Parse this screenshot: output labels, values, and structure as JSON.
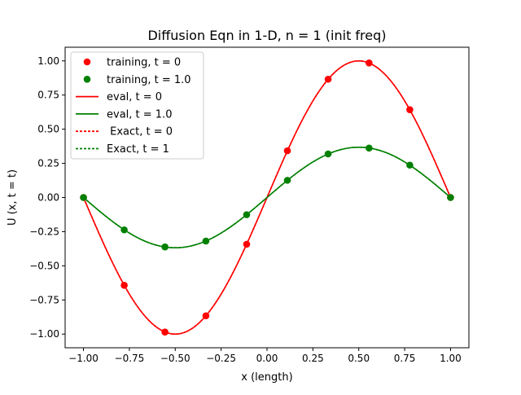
{
  "chart_data": {
    "type": "line",
    "title": "Diffusion Eqn in 1-D, n = 1 (init freq)",
    "xlabel": "x (length)",
    "ylabel": "U (x, t = t)",
    "xlim": [
      -1.1,
      1.1
    ],
    "ylim": [
      -1.1,
      1.1
    ],
    "xticks": [
      -1.0,
      -0.75,
      -0.5,
      -0.25,
      0.0,
      0.25,
      0.5,
      0.75,
      1.0
    ],
    "xtick_labels": [
      "−1.00",
      "−0.75",
      "−0.50",
      "−0.25",
      "0.00",
      "0.25",
      "0.50",
      "0.75",
      "1.00"
    ],
    "yticks": [
      -1.0,
      -0.75,
      -0.5,
      -0.25,
      0.0,
      0.25,
      0.5,
      0.75,
      1.0
    ],
    "ytick_labels": [
      "−1.00",
      "−0.75",
      "−0.50",
      "−0.25",
      "0.00",
      "0.25",
      "0.50",
      "0.75",
      "1.00"
    ],
    "grid": false,
    "legend_position": "top-left",
    "colors": {
      "red": "#ff0000",
      "green": "#008000"
    },
    "scatter_series": [
      {
        "name": "training, t = 0",
        "color": "#ff0000",
        "x": [
          -1.0,
          -0.778,
          -0.556,
          -0.333,
          -0.111,
          0.111,
          0.333,
          0.556,
          0.778,
          1.0
        ],
        "y": [
          0.0,
          -0.643,
          -0.985,
          -0.866,
          -0.342,
          0.342,
          0.866,
          0.985,
          0.643,
          0.0
        ]
      },
      {
        "name": "training, t = 1.0",
        "color": "#008000",
        "x": [
          -1.0,
          -0.778,
          -0.556,
          -0.333,
          -0.111,
          0.111,
          0.333,
          0.556,
          0.778,
          1.0
        ],
        "y": [
          0.0,
          -0.237,
          -0.362,
          -0.319,
          -0.126,
          0.126,
          0.319,
          0.362,
          0.237,
          0.0
        ]
      }
    ],
    "line_series": [
      {
        "name": "eval, t = 0",
        "color": "#ff0000",
        "style": "solid",
        "amplitude": 1.0
      },
      {
        "name": "eval, t = 1.0",
        "color": "#008000",
        "style": "solid",
        "amplitude": 0.368
      },
      {
        "name": " Exact, t = 0",
        "color": "#ff0000",
        "style": "dashed",
        "amplitude": 1.0
      },
      {
        "name": "Exact, t = 1",
        "color": "#008000",
        "style": "dashed",
        "amplitude": 0.368
      }
    ],
    "line_x_range": [
      -1.0,
      1.0
    ]
  }
}
